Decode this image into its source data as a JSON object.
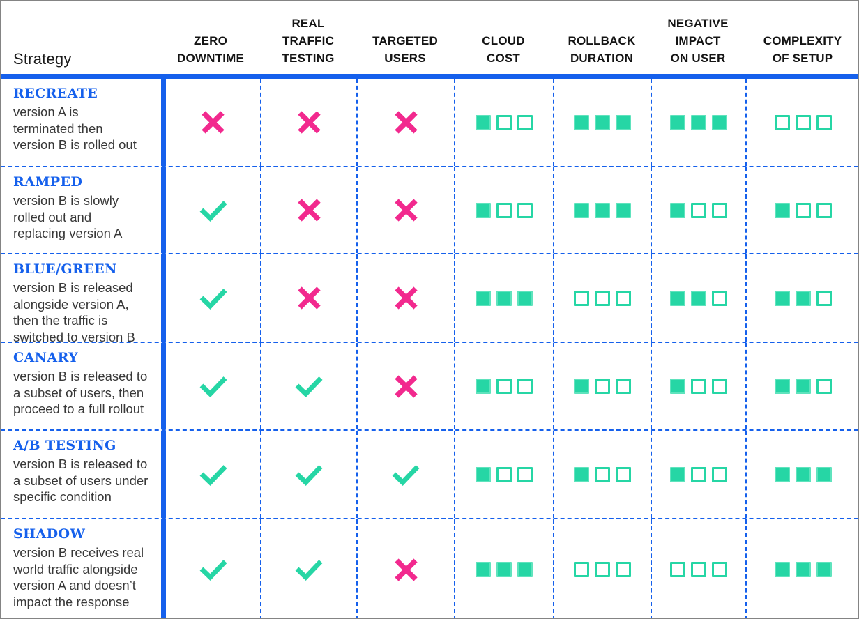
{
  "colors": {
    "accent_blue": "#1560ec",
    "check_teal": "#26d6a5",
    "cross_pink": "#f2298e"
  },
  "chart_data": {
    "type": "table",
    "strategy_label": "Strategy",
    "rating_max": 3,
    "value_legend": {
      "check": "yes",
      "cross": "no",
      "number": "count of filled squares out of 3"
    },
    "columns": [
      {
        "id": "zero_downtime",
        "title": "ZERO\nDOWNTIME"
      },
      {
        "id": "real_traffic_testing",
        "title": "REAL\nTRAFFIC\nTESTING"
      },
      {
        "id": "targeted_users",
        "title": "TARGETED\nUSERS"
      },
      {
        "id": "cloud_cost",
        "title": "CLOUD\nCOST"
      },
      {
        "id": "rollback_duration",
        "title": "ROLLBACK\nDURATION"
      },
      {
        "id": "negative_impact_on_user",
        "title": "NEGATIVE\nIMPACT\nON USER"
      },
      {
        "id": "complexity_of_setup",
        "title": "COMPLEXITY\nOF SETUP"
      }
    ],
    "rows": [
      {
        "name": "RECREATE",
        "description": "version A is\nterminated then\nversion B is rolled out",
        "values": [
          "cross",
          "cross",
          "cross",
          1,
          3,
          3,
          0
        ]
      },
      {
        "name": "RAMPED",
        "description": "version B is slowly\nrolled out and\nreplacing version A",
        "values": [
          "check",
          "cross",
          "cross",
          1,
          3,
          1,
          1
        ]
      },
      {
        "name": "BLUE/GREEN",
        "description": "version B is released\nalongside version A,\nthen the traffic is\nswitched to version B",
        "values": [
          "check",
          "cross",
          "cross",
          3,
          0,
          2,
          2
        ]
      },
      {
        "name": "CANARY",
        "description": "version B is released to\na subset of users, then\nproceed to a full rollout",
        "values": [
          "check",
          "check",
          "cross",
          1,
          1,
          1,
          2
        ]
      },
      {
        "name": "A/B TESTING",
        "description": "version B is released to\na subset of users under\nspecific condition",
        "values": [
          "check",
          "check",
          "check",
          1,
          1,
          1,
          3
        ]
      },
      {
        "name": "SHADOW",
        "description": "version B receives real\nworld traffic alongside\nversion A and doesn’t\nimpact the response",
        "values": [
          "check",
          "check",
          "cross",
          3,
          0,
          0,
          3
        ]
      }
    ]
  }
}
